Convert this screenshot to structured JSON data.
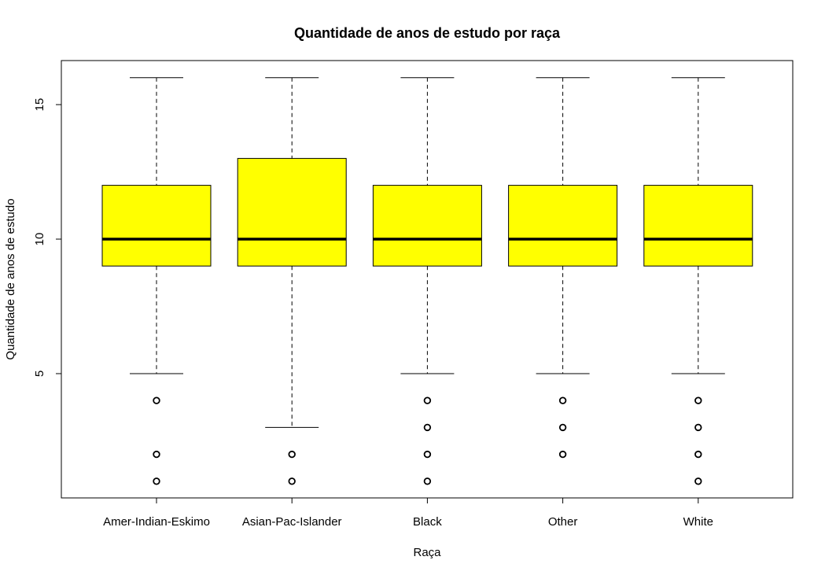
{
  "chart_data": {
    "type": "boxplot",
    "title": "Quantidade de anos de estudo por raça",
    "xlabel": "Raça",
    "ylabel": "Quantidade de anos de estudo",
    "ylim": [
      0.4,
      16.5
    ],
    "yticks": [
      5,
      10,
      15
    ],
    "box_color": "#ffff00",
    "categories": [
      "Amer-Indian-Eskimo",
      "Asian-Pac-Islander",
      "Black",
      "Other",
      "White"
    ],
    "boxes": [
      {
        "category": "Amer-Indian-Eskimo",
        "whisker_low": 5,
        "q1": 9,
        "median": 10,
        "q3": 12,
        "whisker_high": 16,
        "outliers": [
          4,
          2,
          1
        ]
      },
      {
        "category": "Asian-Pac-Islander",
        "whisker_low": 3,
        "q1": 9,
        "median": 10,
        "q3": 13,
        "whisker_high": 16,
        "outliers": [
          2,
          1
        ]
      },
      {
        "category": "Black",
        "whisker_low": 5,
        "q1": 9,
        "median": 10,
        "q3": 12,
        "whisker_high": 16,
        "outliers": [
          4,
          3,
          2,
          1
        ]
      },
      {
        "category": "Other",
        "whisker_low": 5,
        "q1": 9,
        "median": 10,
        "q3": 12,
        "whisker_high": 16,
        "outliers": [
          4,
          3,
          2
        ]
      },
      {
        "category": "White",
        "whisker_low": 5,
        "q1": 9,
        "median": 10,
        "q3": 12,
        "whisker_high": 16,
        "outliers": [
          4,
          3,
          2,
          1
        ]
      }
    ]
  }
}
